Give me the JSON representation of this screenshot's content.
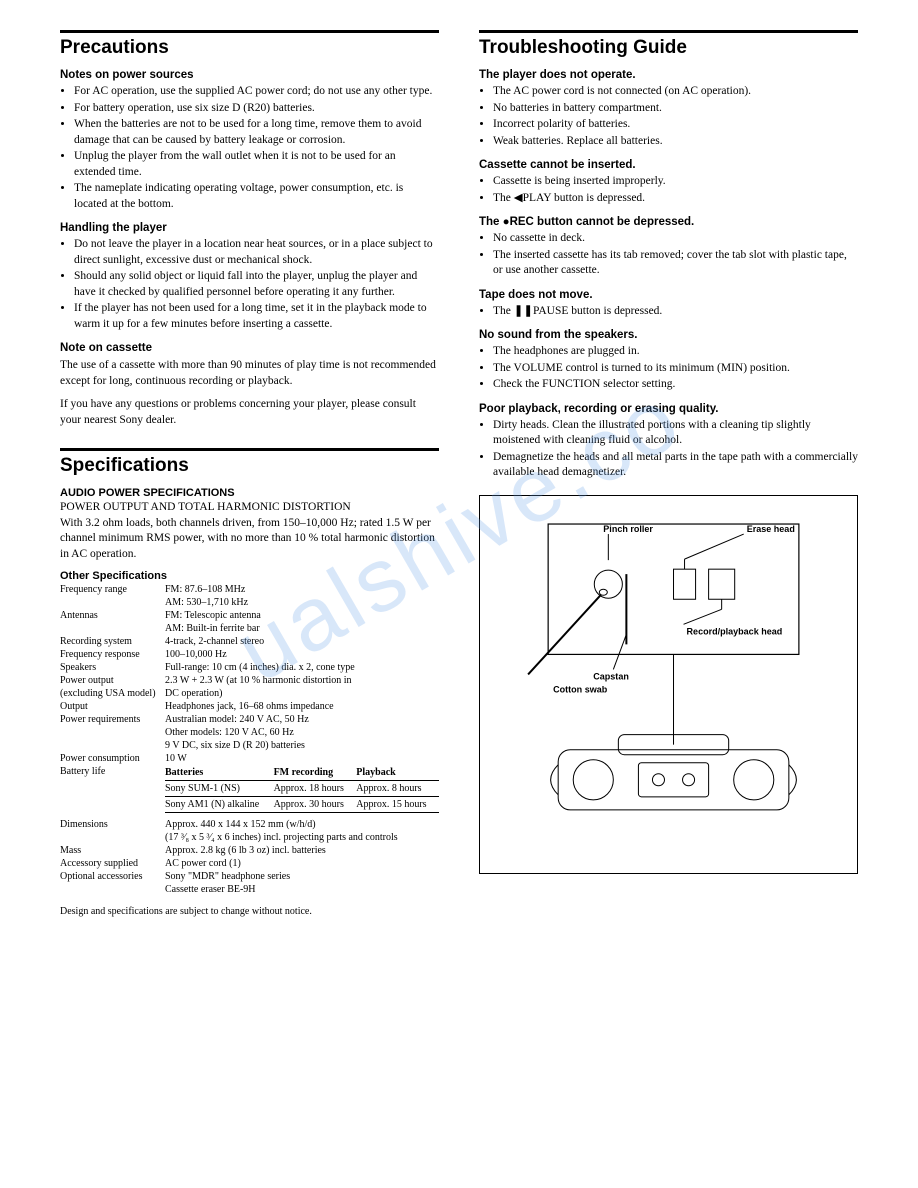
{
  "watermark": "ualshive.co",
  "left": {
    "precautions": {
      "title": "Precautions",
      "power_head": "Notes on power sources",
      "power_items": [
        "For AC operation, use the supplied AC power cord; do not use any other type.",
        "For battery operation, use six size D (R20) batteries.",
        "When the batteries are not to be used for a long time, remove them to avoid damage that can be caused by battery leakage or corrosion.",
        "Unplug the player from the wall outlet when it is not to be used for an extended time.",
        "The nameplate indicating operating voltage, power consumption, etc. is located at the bottom."
      ],
      "handling_head": "Handling the player",
      "handling_items": [
        "Do not leave the player in a location near heat sources, or in a place subject to direct sunlight, excessive dust or mechanical shock.",
        "Should any solid object or liquid fall into the player, unplug the player and have it checked by qualified personnel before operating it any further.",
        "If the player has not been used for a long time, set it in the playback mode to warm it up for a few minutes before inserting a cassette."
      ],
      "cassette_head": "Note on cassette",
      "cassette_body": "The use of a cassette with more than 90 minutes of play time is not recommended except for long,  continuous recording or playback.",
      "questions": "If you have any questions or problems concerning your player, please consult your nearest Sony dealer."
    },
    "specs": {
      "title": "Specifications",
      "audio_head": "AUDIO POWER SPECIFICATIONS",
      "audio_body1": "POWER OUTPUT AND TOTAL HARMONIC DISTORTION",
      "audio_body2": "With 3.2 ohm loads, both channels driven, from 150–10,000 Hz; rated 1.5 W per channel minimum RMS power, with no more than 10 % total harmonic distortion in AC operation.",
      "other_head": "Other Specifications",
      "rows": [
        {
          "l": "Frequency range",
          "v": "FM: 87.6–108 MHz"
        },
        {
          "l": "",
          "v": "AM: 530–1,710 kHz"
        },
        {
          "l": "Antennas",
          "v": "FM: Telescopic antenna"
        },
        {
          "l": "",
          "v": "AM: Built-in ferrite bar"
        },
        {
          "l": "Recording system",
          "v": "4-track, 2-channel stereo"
        },
        {
          "l": "Frequency response",
          "v": "100–10,000 Hz"
        },
        {
          "l": "Speakers",
          "v": "Full-range: 10 cm (4 inches) dia. x 2, cone type"
        },
        {
          "l": "Power output",
          "v": "2.3 W + 2.3 W (at 10 % harmonic distortion in"
        },
        {
          "l": "(excluding USA model)",
          "v": "DC operation)"
        },
        {
          "l": "Output",
          "v": "Headphones jack, 16–68 ohms impedance"
        },
        {
          "l": "Power requirements",
          "v": "Australian model: 240 V AC, 50 Hz"
        },
        {
          "l": "",
          "v": "Other models: 120 V AC, 60 Hz"
        },
        {
          "l": "",
          "v": "9 V DC, six size D (R 20) batteries"
        },
        {
          "l": "Power consumption",
          "v": "10 W"
        }
      ],
      "battery_label": "Battery life",
      "battery_table": {
        "head": [
          "Batteries",
          "FM recording",
          "Playback"
        ],
        "rows": [
          [
            "Sony SUM-1 (NS)",
            "Approx. 18 hours",
            "Approx. 8 hours"
          ],
          [
            "Sony AM1 (N) alkaline",
            "Approx. 30 hours",
            "Approx. 15 hours"
          ]
        ]
      },
      "rows2": [
        {
          "l": "Dimensions",
          "v": "Approx. 440 x 144 x 152 mm (w/h/d)"
        },
        {
          "l": "",
          "v": "(17 ³⁄₈ x 5 ³⁄₄ x 6 inches) incl. projecting parts and controls"
        },
        {
          "l": "Mass",
          "v": "Approx. 2.8 kg (6 lb 3 oz) incl. batteries"
        },
        {
          "l": "Accessory supplied",
          "v": "AC power cord (1)"
        },
        {
          "l": "Optional accessories",
          "v": "Sony \"MDR\" headphone series"
        },
        {
          "l": "",
          "v": "Cassette eraser BE-9H"
        }
      ],
      "notice": "Design and specifications are subject to change without notice."
    }
  },
  "right": {
    "trouble": {
      "title": "Troubleshooting Guide",
      "s1_head": "The player does not operate.",
      "s1_items": [
        "The AC power cord is not connected (on AC operation).",
        "No batteries in battery compartment.",
        "Incorrect polarity of batteries.",
        "Weak batteries. Replace all batteries."
      ],
      "s2_head": "Cassette cannot be inserted.",
      "s2_items": [
        "Cassette is being inserted improperly.",
        "The ◀PLAY button is depressed."
      ],
      "s3_head": "The ●REC button cannot be depressed.",
      "s3_items": [
        "No cassette in deck.",
        "The inserted cassette has its tab removed; cover the tab slot with plastic tape, or use another cassette."
      ],
      "s4_head": "Tape does not move.",
      "s4_items": [
        "The ❚❚PAUSE button is depressed."
      ],
      "s5_head": "No sound from the speakers.",
      "s5_items": [
        "The headphones are plugged in.",
        "The VOLUME control is turned to its minimum (MIN) position.",
        "Check the FUNCTION selector setting."
      ],
      "s6_head": "Poor playback, recording or erasing quality.",
      "s6_items": [
        "Dirty heads. Clean the illustrated portions with a cleaning tip slightly moistened with cleaning fluid or alcohol.",
        "Demagnetize the heads and all metal parts in the tape path with a commercially available head demagnetizer."
      ]
    },
    "diagram": {
      "labels": {
        "pinch": "Pinch roller",
        "erase": "Erase head",
        "record": "Record/playback head",
        "capstan": "Capstan",
        "swab": "Cotton swab"
      }
    }
  }
}
